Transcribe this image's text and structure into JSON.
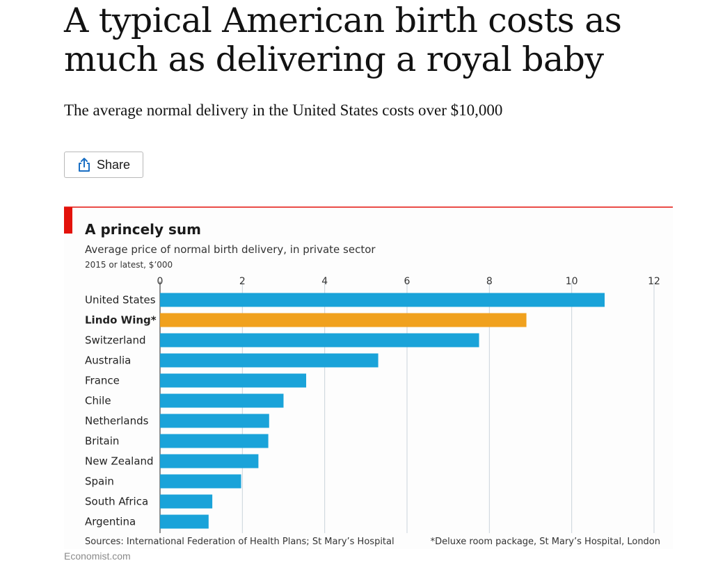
{
  "article": {
    "headline": "A typical American birth costs as much as delivering a royal baby",
    "dek": "The average normal delivery in the United States costs over $10,000",
    "share_label": "Share",
    "credit": "Economist.com"
  },
  "colors": {
    "accent_red": "#e3120b",
    "bar_blue": "#1aa3d9",
    "highlight_orange": "#f0a11e"
  },
  "chart_data": {
    "type": "bar",
    "orientation": "horizontal",
    "title": "A princely sum",
    "subtitle": "Average price of normal birth delivery, in private sector",
    "unit_note": "2015 or latest, $’000",
    "categories": [
      "United States",
      "Lindo Wing*",
      "Switzerland",
      "Australia",
      "France",
      "Chile",
      "Netherlands",
      "Britain",
      "New Zealand",
      "Spain",
      "South Africa",
      "Argentina"
    ],
    "values": [
      10.8,
      8.9,
      7.75,
      5.3,
      3.55,
      3.0,
      2.65,
      2.63,
      2.39,
      1.97,
      1.27,
      1.18
    ],
    "highlight": "Lindo Wing*",
    "xlim": [
      0,
      12
    ],
    "xticks": [
      "0",
      "2",
      "4",
      "6",
      "8",
      "10",
      "12"
    ],
    "grid": true,
    "source": "Sources: International Federation of Health Plans; St Mary’s Hospital",
    "footnote": "*Deluxe room package, St Mary’s Hospital, London"
  }
}
